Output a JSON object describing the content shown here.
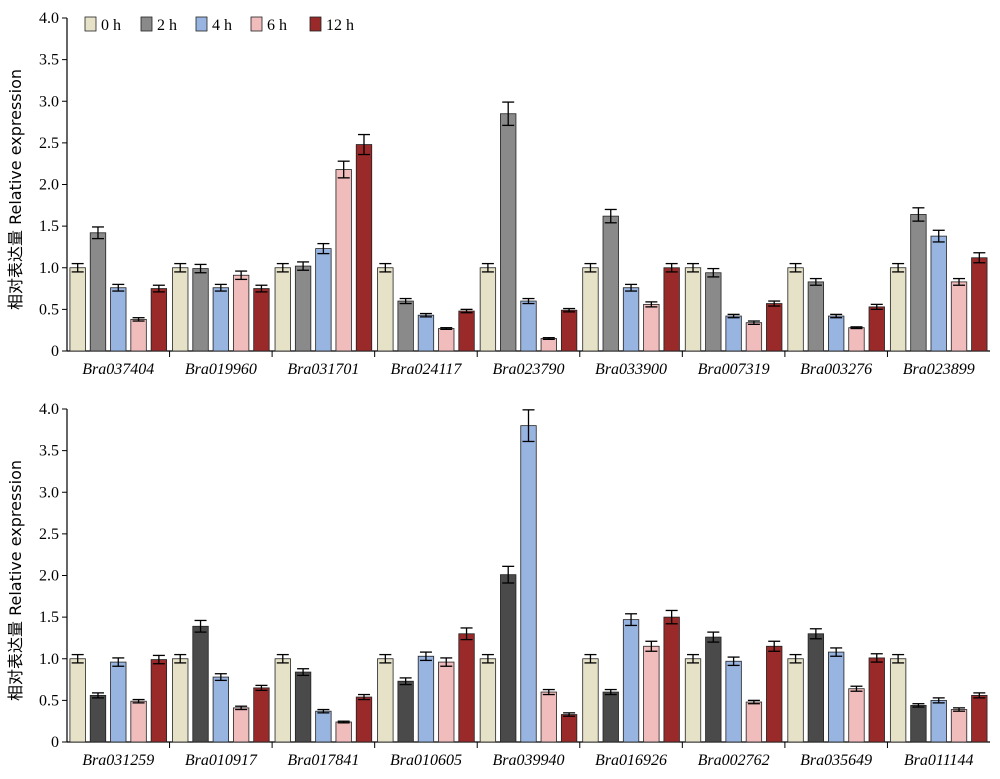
{
  "legend": [
    "0 h",
    "2 h",
    "4 h",
    "6 h",
    "12 h"
  ],
  "ylabel": "相对表达量 Relative expression",
  "colors": {
    "top": [
      "#e6e2c8",
      "#8a8a8a",
      "#98b4e0",
      "#f0bcbc",
      "#9a2a2a"
    ],
    "bottom": [
      "#e6e2c8",
      "#4a4a4a",
      "#98b4e0",
      "#f0bcbc",
      "#9a2a2a"
    ]
  },
  "chart_data": [
    {
      "type": "bar",
      "ylabel": "相对表达量 Relative expression",
      "ylim": [
        0,
        4.0
      ],
      "yticks": [
        "0",
        "0.5",
        "1.0",
        "1.5",
        "2.0",
        "2.5",
        "3.0",
        "3.5",
        "4.0"
      ],
      "legend_position": "top-left",
      "categories": [
        "Bra037404",
        "Bra019960",
        "Bra031701",
        "Bra024117",
        "Bra023790",
        "Bra033900",
        "Bra007319",
        "Bra003276",
        "Bra023899"
      ],
      "series": [
        {
          "name": "0 h",
          "values": [
            1.0,
            1.0,
            1.0,
            1.0,
            1.0,
            1.0,
            1.0,
            1.0,
            1.0
          ],
          "errors": [
            0.05,
            0.05,
            0.05,
            0.05,
            0.05,
            0.05,
            0.05,
            0.05,
            0.05
          ]
        },
        {
          "name": "2 h",
          "values": [
            1.42,
            0.99,
            1.02,
            0.6,
            2.85,
            1.62,
            0.94,
            0.83,
            1.64
          ],
          "errors": [
            0.07,
            0.05,
            0.05,
            0.03,
            0.14,
            0.08,
            0.05,
            0.04,
            0.08
          ]
        },
        {
          "name": "4 h",
          "values": [
            0.76,
            0.76,
            1.23,
            0.43,
            0.6,
            0.76,
            0.42,
            0.42,
            1.38
          ],
          "errors": [
            0.04,
            0.04,
            0.06,
            0.02,
            0.03,
            0.04,
            0.02,
            0.02,
            0.07
          ]
        },
        {
          "name": "6 h",
          "values": [
            0.38,
            0.91,
            2.18,
            0.27,
            0.15,
            0.56,
            0.34,
            0.28,
            0.83
          ],
          "errors": [
            0.02,
            0.05,
            0.1,
            0.01,
            0.01,
            0.03,
            0.02,
            0.01,
            0.04
          ]
        },
        {
          "name": "12 h",
          "values": [
            0.75,
            0.75,
            2.48,
            0.48,
            0.49,
            1.0,
            0.57,
            0.53,
            1.12
          ],
          "errors": [
            0.04,
            0.04,
            0.12,
            0.02,
            0.02,
            0.05,
            0.03,
            0.03,
            0.06
          ]
        }
      ]
    },
    {
      "type": "bar",
      "ylabel": "相对表达量 Relative expression",
      "ylim": [
        0,
        4.0
      ],
      "yticks": [
        "0",
        "0.5",
        "1.0",
        "1.5",
        "2.0",
        "2.5",
        "3.0",
        "3.5",
        "4.0"
      ],
      "categories": [
        "Bra031259",
        "Bra010917",
        "Bra017841",
        "Bra010605",
        "Bra039940",
        "Bra016926",
        "Bra002762",
        "Bra035649",
        "Bra011144"
      ],
      "series": [
        {
          "name": "0 h",
          "values": [
            1.0,
            1.0,
            1.0,
            1.0,
            1.0,
            1.0,
            1.0,
            1.0,
            1.0
          ],
          "errors": [
            0.05,
            0.05,
            0.05,
            0.05,
            0.05,
            0.05,
            0.05,
            0.05,
            0.05
          ]
        },
        {
          "name": "2 h",
          "values": [
            0.56,
            1.39,
            0.84,
            0.73,
            2.01,
            0.6,
            1.26,
            1.3,
            0.44
          ],
          "errors": [
            0.03,
            0.07,
            0.04,
            0.04,
            0.1,
            0.03,
            0.06,
            0.06,
            0.02
          ]
        },
        {
          "name": "4 h",
          "values": [
            0.96,
            0.78,
            0.37,
            1.03,
            3.8,
            1.47,
            0.97,
            1.08,
            0.5
          ],
          "errors": [
            0.05,
            0.04,
            0.02,
            0.05,
            0.19,
            0.07,
            0.05,
            0.05,
            0.03
          ]
        },
        {
          "name": "6 h",
          "values": [
            0.49,
            0.41,
            0.24,
            0.96,
            0.6,
            1.15,
            0.48,
            0.64,
            0.39
          ],
          "errors": [
            0.02,
            0.02,
            0.01,
            0.05,
            0.03,
            0.06,
            0.02,
            0.03,
            0.02
          ]
        },
        {
          "name": "12 h",
          "values": [
            0.99,
            0.65,
            0.54,
            1.3,
            0.33,
            1.5,
            1.15,
            1.01,
            0.56
          ],
          "errors": [
            0.05,
            0.03,
            0.03,
            0.07,
            0.02,
            0.08,
            0.06,
            0.05,
            0.03
          ]
        }
      ]
    }
  ]
}
